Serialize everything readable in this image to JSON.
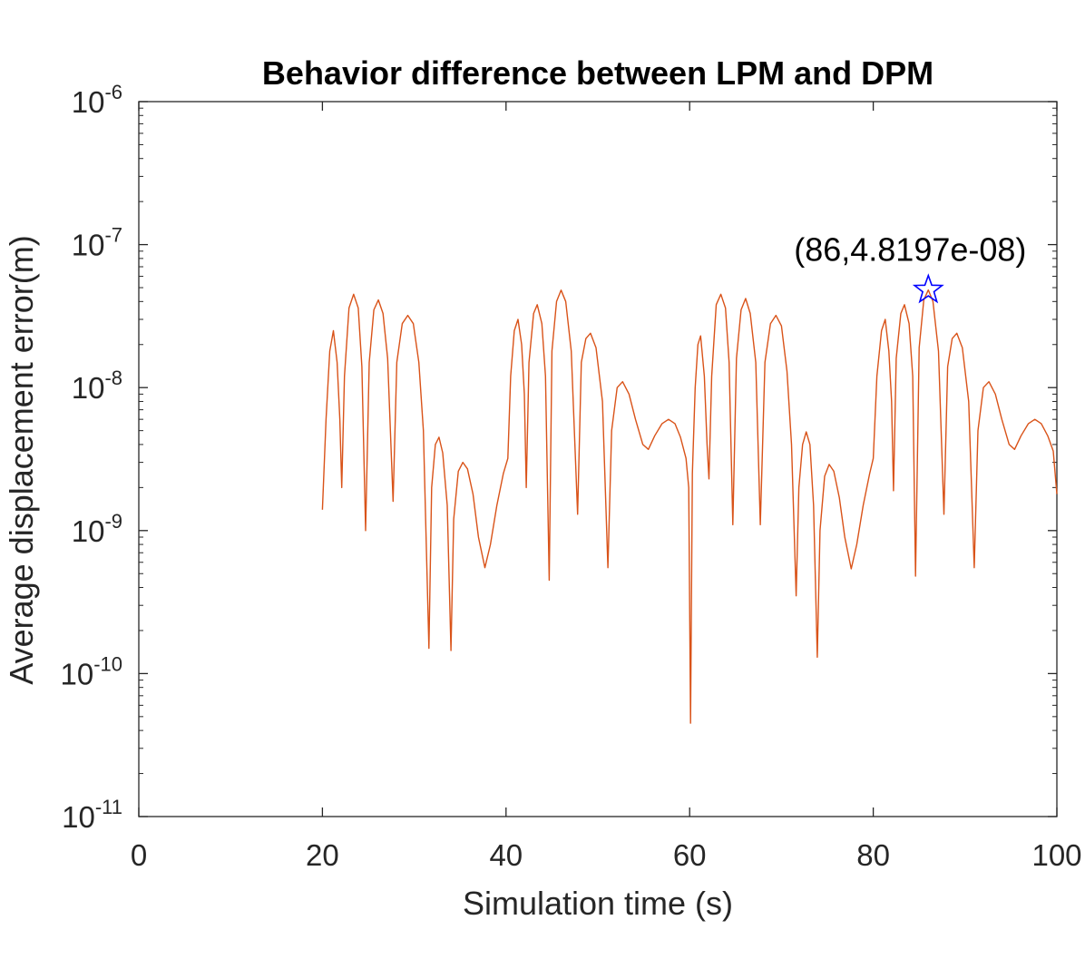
{
  "chart_data": {
    "type": "line",
    "title": "Behavior difference between LPM and DPM",
    "xlabel": "Simulation time (s)",
    "ylabel": "Average displacement error(m)",
    "xlim": [
      0,
      100
    ],
    "ylim": [
      1e-11,
      1e-06
    ],
    "yscale": "log",
    "x_ticks": [
      0,
      20,
      40,
      60,
      80,
      100
    ],
    "x_tick_labels": [
      "0",
      "20",
      "40",
      "60",
      "80",
      "100"
    ],
    "y_ticks": [
      -11,
      -10,
      -9,
      -8,
      -7,
      -6
    ],
    "y_tick_labels": [
      {
        "base": "10",
        "exp": "-11"
      },
      {
        "base": "10",
        "exp": "-10"
      },
      {
        "base": "10",
        "exp": "-9"
      },
      {
        "base": "10",
        "exp": "-8"
      },
      {
        "base": "10",
        "exp": "-7"
      },
      {
        "base": "10",
        "exp": "-6"
      }
    ],
    "grid": false,
    "series": [
      {
        "name": "Average displacement error",
        "color": "#d95319",
        "points": [
          [
            20.0,
            1.4e-09
          ],
          [
            20.4,
            6e-09
          ],
          [
            20.8,
            1.8e-08
          ],
          [
            21.2,
            2.5e-08
          ],
          [
            21.6,
            1.5e-08
          ],
          [
            21.9,
            6e-09
          ],
          [
            22.1,
            2e-09
          ],
          [
            22.4,
            1.2e-08
          ],
          [
            22.9,
            3.6e-08
          ],
          [
            23.4,
            4.5e-08
          ],
          [
            23.9,
            3.6e-08
          ],
          [
            24.3,
            1.4e-08
          ],
          [
            24.7,
            1e-09
          ],
          [
            25.1,
            1.5e-08
          ],
          [
            25.6,
            3.5e-08
          ],
          [
            26.1,
            4.1e-08
          ],
          [
            26.6,
            3.3e-08
          ],
          [
            27.1,
            1.6e-08
          ],
          [
            27.7,
            1.6e-09
          ],
          [
            28.1,
            1.5e-08
          ],
          [
            28.7,
            2.8e-08
          ],
          [
            29.3,
            3.2e-08
          ],
          [
            29.9,
            2.8e-08
          ],
          [
            30.5,
            1.5e-08
          ],
          [
            31.0,
            5e-09
          ],
          [
            31.6,
            1.5e-10
          ],
          [
            31.9,
            2e-09
          ],
          [
            32.3,
            4e-09
          ],
          [
            32.7,
            4.5e-09
          ],
          [
            33.1,
            3.5e-09
          ],
          [
            33.6,
            1.5e-09
          ],
          [
            34.0,
            1.45e-10
          ],
          [
            34.3,
            1.2e-09
          ],
          [
            34.8,
            2.6e-09
          ],
          [
            35.3,
            3e-09
          ],
          [
            35.8,
            2.7e-09
          ],
          [
            36.4,
            1.8e-09
          ],
          [
            37.0,
            9e-10
          ],
          [
            37.7,
            5.5e-10
          ],
          [
            38.3,
            8e-10
          ],
          [
            39.0,
            1.5e-09
          ],
          [
            39.7,
            2.5e-09
          ],
          [
            40.2,
            3.2e-09
          ],
          [
            40.5,
            1.2e-08
          ],
          [
            40.9,
            2.5e-08
          ],
          [
            41.3,
            3e-08
          ],
          [
            41.7,
            2e-08
          ],
          [
            42.0,
            9e-09
          ],
          [
            42.2,
            2e-09
          ],
          [
            42.5,
            1.5e-08
          ],
          [
            43.0,
            3.3e-08
          ],
          [
            43.4,
            3.8e-08
          ],
          [
            43.9,
            2.8e-08
          ],
          [
            44.3,
            1.2e-08
          ],
          [
            44.7,
            4.5e-10
          ],
          [
            45.0,
            1.8e-08
          ],
          [
            45.5,
            4e-08
          ],
          [
            46.0,
            4.8e-08
          ],
          [
            46.5,
            4e-08
          ],
          [
            47.1,
            1.8e-08
          ],
          [
            47.8,
            1.3e-09
          ],
          [
            48.2,
            1.5e-08
          ],
          [
            48.7,
            2.2e-08
          ],
          [
            49.2,
            2.4e-08
          ],
          [
            49.8,
            1.9e-08
          ],
          [
            50.5,
            8e-09
          ],
          [
            51.1,
            5.5e-10
          ],
          [
            51.5,
            5e-09
          ],
          [
            52.1,
            1e-08
          ],
          [
            52.7,
            1.1e-08
          ],
          [
            53.4,
            9e-09
          ],
          [
            54.1,
            6e-09
          ],
          [
            54.9,
            4e-09
          ],
          [
            55.5,
            3.7e-09
          ],
          [
            56.2,
            4.6e-09
          ],
          [
            57.0,
            5.6e-09
          ],
          [
            57.7,
            6e-09
          ],
          [
            58.4,
            5.6e-09
          ],
          [
            59.0,
            4.5e-09
          ],
          [
            59.6,
            3.2e-09
          ],
          [
            59.9,
            2e-09
          ],
          [
            60.1,
            4.5e-11
          ],
          [
            60.3,
            2.5e-09
          ],
          [
            60.6,
            1e-08
          ],
          [
            60.9,
            2e-08
          ],
          [
            61.2,
            2.3e-08
          ],
          [
            61.6,
            1.2e-08
          ],
          [
            61.9,
            4e-09
          ],
          [
            62.1,
            2.3e-09
          ],
          [
            62.4,
            1.2e-08
          ],
          [
            62.9,
            3.8e-08
          ],
          [
            63.4,
            4.5e-08
          ],
          [
            63.9,
            3.6e-08
          ],
          [
            64.3,
            1.5e-08
          ],
          [
            64.7,
            1.1e-09
          ],
          [
            65.1,
            1.6e-08
          ],
          [
            65.6,
            3.5e-08
          ],
          [
            66.1,
            4.2e-08
          ],
          [
            66.6,
            3.3e-08
          ],
          [
            67.2,
            1.5e-08
          ],
          [
            67.7,
            1.1e-09
          ],
          [
            68.2,
            1.5e-08
          ],
          [
            68.8,
            2.8e-08
          ],
          [
            69.4,
            3.2e-08
          ],
          [
            70.0,
            2.7e-08
          ],
          [
            70.6,
            1.3e-08
          ],
          [
            71.1,
            4e-09
          ],
          [
            71.6,
            3.5e-10
          ],
          [
            71.9,
            2e-09
          ],
          [
            72.3,
            4e-09
          ],
          [
            72.7,
            4.9e-09
          ],
          [
            73.1,
            4e-09
          ],
          [
            73.5,
            1.5e-09
          ],
          [
            73.9,
            1.3e-10
          ],
          [
            74.2,
            1e-09
          ],
          [
            74.7,
            2.4e-09
          ],
          [
            75.2,
            2.9e-09
          ],
          [
            75.7,
            2.6e-09
          ],
          [
            76.3,
            1.7e-09
          ],
          [
            76.9,
            9e-10
          ],
          [
            77.6,
            5.4e-10
          ],
          [
            78.2,
            8e-10
          ],
          [
            78.9,
            1.5e-09
          ],
          [
            79.6,
            2.5e-09
          ],
          [
            80.0,
            3.2e-09
          ],
          [
            80.4,
            1.2e-08
          ],
          [
            80.9,
            2.5e-08
          ],
          [
            81.3,
            3e-08
          ],
          [
            81.7,
            1.8e-08
          ],
          [
            82.0,
            8e-09
          ],
          [
            82.2,
            1.9e-09
          ],
          [
            82.5,
            1.6e-08
          ],
          [
            83.0,
            3.3e-08
          ],
          [
            83.4,
            3.8e-08
          ],
          [
            83.9,
            2.8e-08
          ],
          [
            84.3,
            1.2e-08
          ],
          [
            84.6,
            4.8e-10
          ],
          [
            85.0,
            1.9e-08
          ],
          [
            85.5,
            4.1e-08
          ],
          [
            86.0,
            4.82e-08
          ],
          [
            86.5,
            4e-08
          ],
          [
            87.1,
            1.8e-08
          ],
          [
            87.7,
            1.3e-09
          ],
          [
            88.1,
            1.4e-08
          ],
          [
            88.6,
            2.2e-08
          ],
          [
            89.1,
            2.4e-08
          ],
          [
            89.7,
            1.9e-08
          ],
          [
            90.4,
            8e-09
          ],
          [
            91.0,
            5.5e-10
          ],
          [
            91.4,
            5e-09
          ],
          [
            92.0,
            1e-08
          ],
          [
            92.6,
            1.1e-08
          ],
          [
            93.3,
            9e-09
          ],
          [
            94.0,
            6e-09
          ],
          [
            94.8,
            4e-09
          ],
          [
            95.4,
            3.7e-09
          ],
          [
            96.1,
            4.6e-09
          ],
          [
            96.9,
            5.6e-09
          ],
          [
            97.6,
            6e-09
          ],
          [
            98.3,
            5.6e-09
          ],
          [
            99.0,
            4.6e-09
          ],
          [
            99.6,
            3.6e-09
          ],
          [
            100.0,
            1.8e-09
          ]
        ]
      }
    ],
    "annotations": [
      {
        "text": "(86,4.8197e-08)",
        "x": 86,
        "y": 4.8197e-08,
        "marker": "star",
        "marker_color": "#0000ff"
      }
    ]
  }
}
